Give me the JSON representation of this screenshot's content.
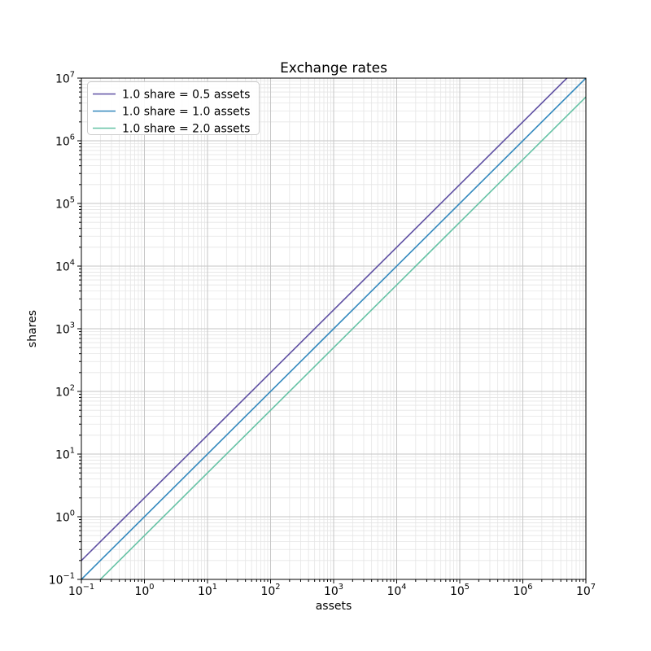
{
  "chart_data": {
    "type": "line",
    "title": "Exchange rates",
    "xlabel": "assets",
    "ylabel": "shares",
    "xscale": "log",
    "yscale": "log",
    "xlim": [
      0.1,
      10000000
    ],
    "ylim": [
      0.1,
      10000000
    ],
    "x_tick_exponents": [
      -1,
      0,
      1,
      2,
      3,
      4,
      5,
      6,
      7
    ],
    "y_tick_exponents": [
      -1,
      0,
      1,
      2,
      3,
      4,
      5,
      6,
      7
    ],
    "minor_tick_subs": [
      2,
      3,
      4,
      5,
      6,
      7,
      8,
      9
    ],
    "grid": "both",
    "legend": {
      "position": "upper left",
      "entries": [
        "1.0 share = 0.5 assets",
        "1.0 share = 1.0 assets",
        "1.0 share = 2.0 assets"
      ]
    },
    "series": [
      {
        "name": "1.0 share = 0.5 assets",
        "assets_per_share": 0.5,
        "color": "#5e4fa2",
        "x": [
          0.1,
          10000000
        ],
        "y": [
          0.2,
          20000000
        ]
      },
      {
        "name": "1.0 share = 1.0 assets",
        "assets_per_share": 1.0,
        "color": "#3288bd",
        "x": [
          0.1,
          10000000
        ],
        "y": [
          0.1,
          10000000
        ]
      },
      {
        "name": "1.0 share = 2.0 assets",
        "assets_per_share": 2.0,
        "color": "#66c2a5",
        "x": [
          0.1,
          10000000
        ],
        "y": [
          0.05,
          5000000
        ]
      }
    ],
    "style": {
      "background": "#ffffff",
      "major_grid_color": "#c6c6c6",
      "minor_grid_color": "#e5e5e5",
      "spine_color": "#000000",
      "text_color": "#000000",
      "legend_border_color": "#cccccc",
      "line_width": 1.6
    }
  }
}
